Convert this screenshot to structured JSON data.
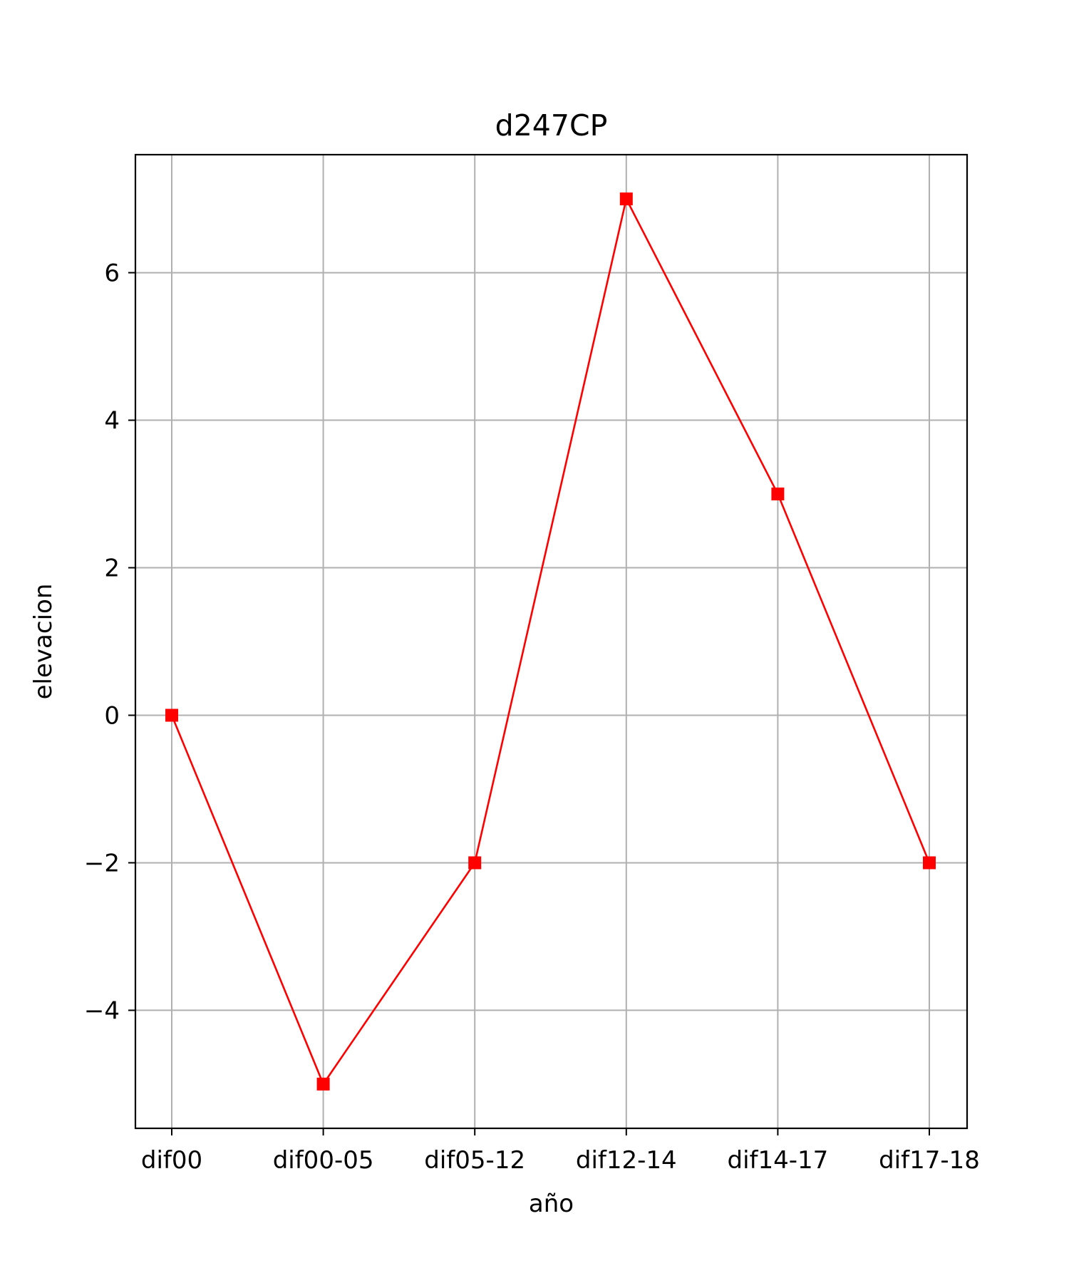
{
  "chart_data": {
    "type": "line",
    "title": "d247CP",
    "xlabel": "año",
    "ylabel": "elevacion",
    "categories": [
      "dif00",
      "dif00-05",
      "dif05-12",
      "dif12-14",
      "dif14-17",
      "dif17-18"
    ],
    "series": [
      {
        "values": [
          0,
          -5,
          -2,
          7,
          3,
          -2
        ],
        "color": "#ff0000",
        "marker": "square"
      }
    ],
    "yticks": [
      -4,
      -2,
      0,
      2,
      4,
      6
    ],
    "ytick_labels": [
      "−4",
      "−2",
      "0",
      "2",
      "4",
      "6"
    ],
    "ylim": [
      -5.6,
      7.6
    ],
    "grid": true,
    "grid_color": "#b0b0b0",
    "axis_color": "#000000"
  }
}
